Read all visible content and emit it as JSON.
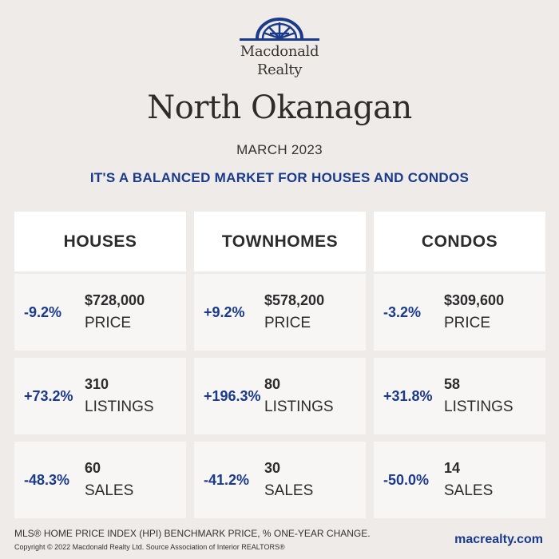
{
  "brand": {
    "logo_line1": "Macdonald",
    "logo_line2": "Realty",
    "logo_icon": "sunburst-arch-logo",
    "accent": "#1a3a8c"
  },
  "title": "North Okanagan",
  "date": "MARCH 2023",
  "headline": "IT'S A BALANCED MARKET FOR HOUSES AND CONDOS",
  "columns": [
    {
      "heading": "HOUSES",
      "rows": [
        {
          "change": "-9.2%",
          "value": "$728,000",
          "label": "PRICE"
        },
        {
          "change": "+73.2%",
          "value": "310",
          "label": "LISTINGS"
        },
        {
          "change": "-48.3%",
          "value": "60",
          "label": "SALES"
        }
      ]
    },
    {
      "heading": "TOWNHOMES",
      "rows": [
        {
          "change": "+9.2%",
          "value": "$578,200",
          "label": "PRICE"
        },
        {
          "change": "+196.3%",
          "value": "80",
          "label": "LISTINGS"
        },
        {
          "change": "-41.2%",
          "value": "30",
          "label": "SALES"
        }
      ]
    },
    {
      "heading": "CONDOS",
      "rows": [
        {
          "change": "-3.2%",
          "value": "$309,600",
          "label": "PRICE"
        },
        {
          "change": "+31.8%",
          "value": "58",
          "label": "LISTINGS"
        },
        {
          "change": "-50.0%",
          "value": "14",
          "label": "SALES"
        }
      ]
    }
  ],
  "footer": {
    "note": "MLS® HOME PRICE INDEX (HPI) BENCHMARK PRICE, % ONE-YEAR CHANGE.",
    "copyright": "Copyright © 2022 Macdonald Realty Ltd. Source Association of Interior REALTORS®",
    "website": "macrealty.com"
  }
}
